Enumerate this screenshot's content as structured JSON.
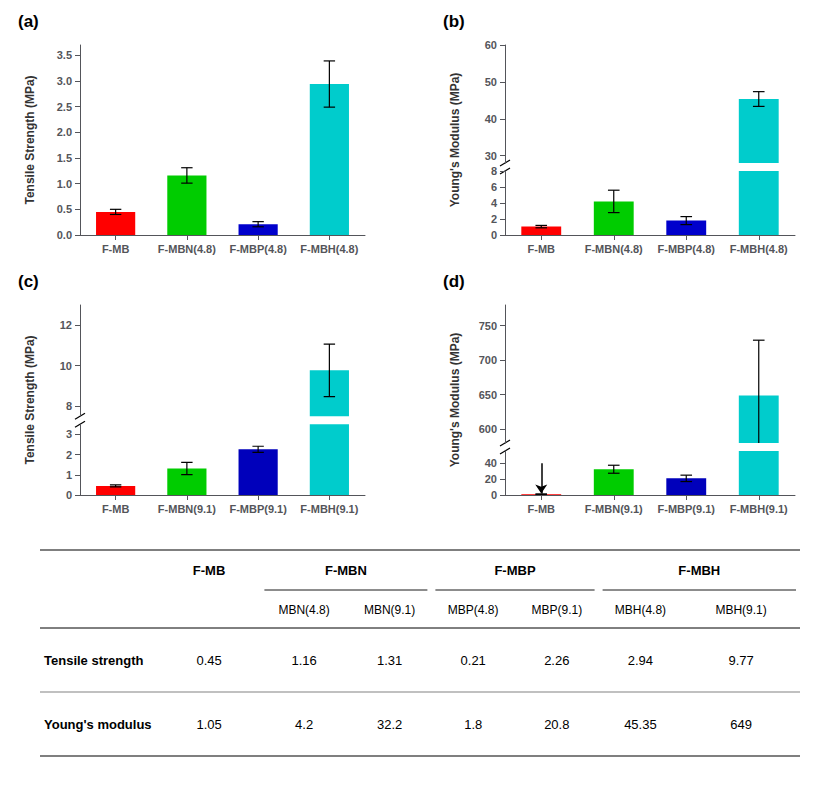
{
  "chart_data": [
    {
      "type": "bar",
      "title": "(a)",
      "categories": [
        "F-MB",
        "F-MBN(4.8)",
        "F-MBP(4.8)",
        "F-MBH(4.8)"
      ],
      "values": [
        0.45,
        1.16,
        0.21,
        2.94
      ],
      "errors": [
        0.05,
        0.15,
        0.05,
        0.45
      ],
      "colors": [
        "#ff0000",
        "#00cc00",
        "#0000cc",
        "#00cccc"
      ],
      "ylabel": "Tensile Strength (MPa)",
      "ylim": [
        0,
        3.7
      ],
      "yticks": [
        {
          "value": 0,
          "label": "0.0"
        },
        0.5,
        {
          "value": 1,
          "label": "1.0"
        },
        1.5,
        {
          "value": 2,
          "label": "2.0"
        },
        2.5,
        {
          "value": 3,
          "label": "3.0"
        },
        3.5
      ],
      "grid": false
    },
    {
      "type": "bar",
      "title": "(b)",
      "categories": [
        "F-MB",
        "F-MBN(4.8)",
        "F-MBP(4.8)",
        "F-MBH(4.8)"
      ],
      "values": [
        1.05,
        4.2,
        1.8,
        45.35
      ],
      "errors": [
        0.15,
        1.4,
        0.5,
        2.0
      ],
      "colors": [
        "#ff0000",
        "#00cc00",
        "#0000cc",
        "#00cccc"
      ],
      "ylabel": "Young's Modulus (MPa)",
      "ylim": [
        [
          0,
          8
        ],
        [
          28,
          60
        ]
      ],
      "yticks": [
        [
          0,
          2,
          4,
          6,
          8
        ],
        [
          30,
          40,
          50,
          60
        ]
      ],
      "grid": false
    },
    {
      "type": "bar",
      "title": "(c)",
      "categories": [
        "F-MB",
        "F-MBN(9.1)",
        "F-MBP(9.1)",
        "F-MBH(9.1)"
      ],
      "values": [
        0.45,
        1.31,
        2.26,
        9.77
      ],
      "errors": [
        0.05,
        0.3,
        0.15,
        1.3
      ],
      "colors": [
        "#ff0000",
        "#00cc00",
        "#0000bb",
        "#00cccc"
      ],
      "ylabel": "Tensile Strength (MPa)",
      "ylim": [
        [
          0,
          3.5
        ],
        [
          7.5,
          13
        ]
      ],
      "yticks": [
        [
          0,
          1,
          2,
          3
        ],
        [
          8,
          10,
          12
        ]
      ],
      "grid": false
    },
    {
      "type": "bar",
      "title": "(d)",
      "categories": [
        "F-MB",
        "F-MBN(9.1)",
        "F-MBP(9.1)",
        "F-MBH(9.1)"
      ],
      "values": [
        1.05,
        32.2,
        20.8,
        649
      ],
      "errors": [
        0.2,
        5.0,
        4.0,
        80.0
      ],
      "colors": [
        "#ff0000",
        "#00cc00",
        "#0000bb",
        "#00cccc"
      ],
      "ylabel": "Young's Modulus (MPa)",
      "ylim": [
        [
          0,
          55
        ],
        [
          580,
          780
        ]
      ],
      "yticks": [
        [
          0,
          20,
          40
        ],
        [
          600,
          650,
          700,
          750
        ]
      ],
      "arrows": [
        {
          "x": "F-MB",
          "from": 39.6,
          "to": 2
        }
      ],
      "grid": false
    },
    {
      "type": "table",
      "groups": [
        {
          "name": "F-MB",
          "columns": []
        },
        {
          "name": "F-MBN",
          "columns": [
            "MBN(4.8)",
            "MBN(9.1)"
          ]
        },
        {
          "name": "F-MBP",
          "columns": [
            "MBP(4.8)",
            "MBP(9.1)"
          ]
        },
        {
          "name": "F-MBH",
          "columns": [
            "MBH(4.8)",
            "MBH(9.1)"
          ]
        }
      ],
      "rows": [
        {
          "label": "Tensile strength",
          "values": [
            0.45,
            1.16,
            1.31,
            0.21,
            2.26,
            2.94,
            9.77
          ]
        },
        {
          "label": "Young's modulus",
          "values": [
            1.05,
            4.2,
            32.2,
            1.8,
            20.8,
            45.35,
            649
          ]
        }
      ]
    }
  ]
}
